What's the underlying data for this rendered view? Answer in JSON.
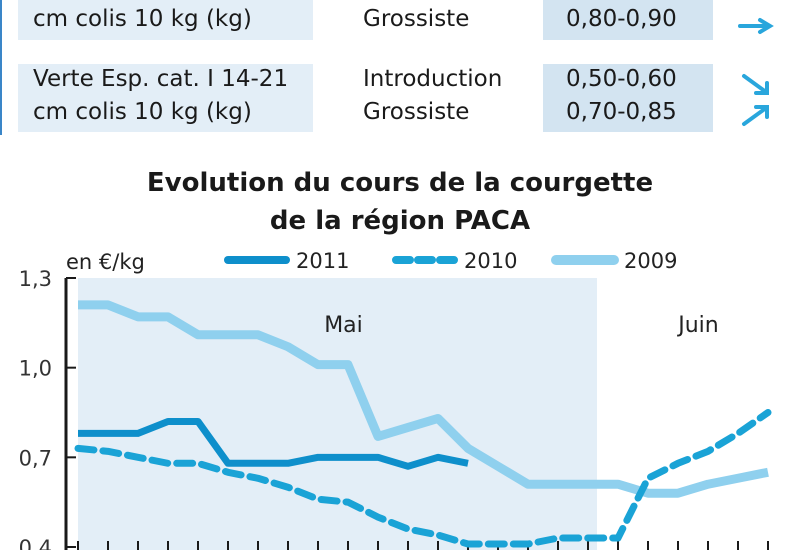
{
  "table": {
    "rows": [
      {
        "product": [
          "",
          "cm colis 10 kg (kg)"
        ],
        "stage": [
          "",
          "Grossiste"
        ],
        "price": [
          "",
          "0,80-0,90"
        ],
        "trend": [
          "none",
          "right"
        ]
      },
      {
        "product": [
          "Verte Esp. cat. I 14-21",
          "cm colis 10 kg (kg)"
        ],
        "stage": [
          "Introduction",
          "Grossiste"
        ],
        "price": [
          "0,50-0,60",
          "0,70-0,85"
        ],
        "trend": [
          "down",
          "up"
        ]
      }
    ]
  },
  "colors": {
    "s2011": "#0e8fcb",
    "s2010": "#1aa3d6",
    "s2009": "#8fd0ee",
    "month_band": "#e3eef7",
    "axis": "#1a1a1a"
  },
  "chart_data": {
    "type": "line",
    "title": [
      "Evolution du cours de la courgette",
      "de la région PACA"
    ],
    "ylabel": "en €/kg",
    "ylim": [
      0.4,
      1.3
    ],
    "yticks": [
      1.3,
      1.0,
      0.7,
      0.4
    ],
    "ytick_labels": [
      "1,3",
      "1,0",
      "0,7",
      "0,4"
    ],
    "months": [
      {
        "label": "Mai",
        "from": 0,
        "to": 17.3
      },
      {
        "label": "Juin",
        "from": 17.3,
        "to": 23
      }
    ],
    "legend": [
      "2011",
      "2010",
      "2009"
    ],
    "legend_placement": "top",
    "series": [
      {
        "name": "2011",
        "style": "solid-thick",
        "x": [
          0,
          1,
          2,
          3,
          4,
          5,
          6,
          7,
          8,
          9,
          10,
          11,
          12,
          13
        ],
        "y": [
          0.78,
          0.78,
          0.78,
          0.82,
          0.82,
          0.68,
          0.68,
          0.68,
          0.7,
          0.7,
          0.7,
          0.67,
          0.7,
          0.68
        ]
      },
      {
        "name": "2010",
        "style": "dashed",
        "x": [
          0,
          1,
          2,
          3,
          4,
          5,
          6,
          7,
          8,
          9,
          10,
          11,
          12,
          13,
          14,
          15,
          16,
          17,
          18,
          19,
          20,
          21,
          22,
          23
        ],
        "y": [
          0.73,
          0.72,
          0.7,
          0.68,
          0.68,
          0.65,
          0.63,
          0.6,
          0.56,
          0.55,
          0.5,
          0.46,
          0.44,
          0.41,
          0.41,
          0.41,
          0.43,
          0.43,
          0.43,
          0.63,
          0.68,
          0.72,
          0.78,
          0.85
        ]
      },
      {
        "name": "2009",
        "style": "solid-light",
        "x": [
          0,
          1,
          2,
          3,
          4,
          5,
          6,
          7,
          8,
          9,
          10,
          11,
          12,
          13,
          14,
          15,
          16,
          17,
          18,
          19,
          20,
          21,
          22,
          23
        ],
        "y": [
          1.21,
          1.21,
          1.17,
          1.17,
          1.11,
          1.11,
          1.11,
          1.07,
          1.01,
          1.01,
          0.77,
          0.8,
          0.83,
          0.73,
          0.67,
          0.61,
          0.61,
          0.61,
          0.61,
          0.58,
          0.58,
          0.61,
          0.63,
          0.65
        ]
      }
    ]
  }
}
